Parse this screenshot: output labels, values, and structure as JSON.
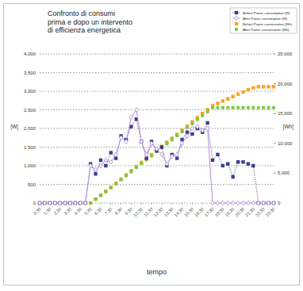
{
  "chart_data": {
    "type": "line",
    "title": "Confronto di consumi\nprima e dopo un intervento\ndi efficienza energetica",
    "x_label": "tempo",
    "y_label": "[W]",
    "y2_label": "[Wh]",
    "categories": [
      "0:30",
      null,
      "1:30",
      null,
      "2:30",
      null,
      "3:30",
      null,
      "4:30",
      null,
      "5:30",
      null,
      "6:30",
      null,
      "7:30",
      null,
      "8:30",
      null,
      "9:30",
      null,
      "10:30",
      null,
      "11:30",
      null,
      "12:30",
      null,
      "13:30",
      null,
      "14:30",
      null,
      "15:30",
      null,
      "16:30",
      null,
      "17:30",
      null,
      "18:30",
      null,
      "19:30",
      null,
      "20:30",
      null,
      "21:30",
      null,
      "22:30",
      null,
      "23:30"
    ],
    "ylim": [
      0,
      4000
    ],
    "yticks": [
      0,
      500,
      {
        "value": 1000,
        "label": "1,000"
      },
      {
        "value": 1500,
        "label": "1,500"
      },
      {
        "value": 2000,
        "label": "2,000"
      },
      {
        "value": 2500,
        "label": "2,500"
      },
      {
        "value": 3000,
        "label": "3,000"
      },
      {
        "value": 3500,
        "label": "3,500"
      },
      {
        "value": 4000,
        "label": "4,000"
      }
    ],
    "y2lim": [
      0,
      25000
    ],
    "y2ticks": [
      0,
      {
        "value": 5000,
        "label": "5,000"
      },
      {
        "value": 10000,
        "label": "10,000"
      },
      {
        "value": 15000,
        "label": "15,000"
      },
      {
        "value": 20000,
        "label": "20,000"
      },
      {
        "value": 25000,
        "label": "25,000"
      }
    ],
    "grid": true,
    "legend": "top-right",
    "series": [
      {
        "name": "Before Power consumption (W)",
        "color": "#3d3d91",
        "marker": "square",
        "line_style": "dotted",
        "values": [
          0,
          0,
          0,
          0,
          0,
          0,
          0,
          0,
          0,
          0,
          1050,
          780,
          1150,
          1000,
          1350,
          1200,
          1800,
          1700,
          2050,
          2250,
          1650,
          1200,
          1650,
          1400,
          1500,
          1000,
          1300,
          1200,
          1700,
          1900,
          1850,
          2000,
          1900,
          2150,
          1150,
          1300,
          1000,
          1050,
          700,
          1100,
          1100,
          1050,
          1000,
          0,
          0,
          0,
          0
        ]
      },
      {
        "name": "After Power consumption (W)",
        "color": "#b48cd8",
        "marker": "diamond",
        "line_style": "solid",
        "values": [
          0,
          0,
          0,
          0,
          0,
          0,
          0,
          0,
          0,
          0,
          1000,
          900,
          1000,
          1150,
          1100,
          1300,
          1750,
          1650,
          2300,
          2500,
          1650,
          1300,
          1600,
          1450,
          1300,
          1050,
          1250,
          1300,
          1600,
          1800,
          2000,
          2050,
          1950,
          2000,
          0,
          0,
          0,
          0,
          0,
          0,
          0,
          0,
          0,
          0,
          0,
          0,
          0
        ]
      },
      {
        "name": "Before Power conservation (Wh)",
        "color": "#f5a623",
        "marker": "square",
        "line_style": "none",
        "axis": "y2",
        "values": [
          0,
          0,
          0,
          0,
          0,
          0,
          0,
          0,
          0,
          0,
          0,
          650,
          1300,
          1950,
          2600,
          3300,
          4000,
          4700,
          5400,
          6100,
          6800,
          7450,
          8100,
          8800,
          9500,
          10200,
          10850,
          11500,
          12200,
          12900,
          13600,
          14300,
          15000,
          15650,
          16300,
          16700,
          17100,
          17450,
          17850,
          18250,
          18600,
          19000,
          19300,
          19500,
          19500,
          19500,
          19500
        ]
      },
      {
        "name": "After Power conservation (Wh)",
        "color": "#7ac943",
        "marker": "circle",
        "line_style": "none",
        "axis": "y2",
        "values": [
          0,
          0,
          0,
          0,
          0,
          0,
          0,
          0,
          0,
          0,
          0,
          620,
          1250,
          1900,
          2550,
          3200,
          3900,
          4550,
          5250,
          5950,
          6600,
          7250,
          7900,
          8600,
          9300,
          9950,
          10600,
          11300,
          11950,
          12650,
          13300,
          14000,
          14650,
          15300,
          16000,
          16000,
          16000,
          16000,
          16000,
          16000,
          16000,
          16000,
          16000,
          16000,
          16000,
          16000,
          16000
        ]
      }
    ]
  }
}
